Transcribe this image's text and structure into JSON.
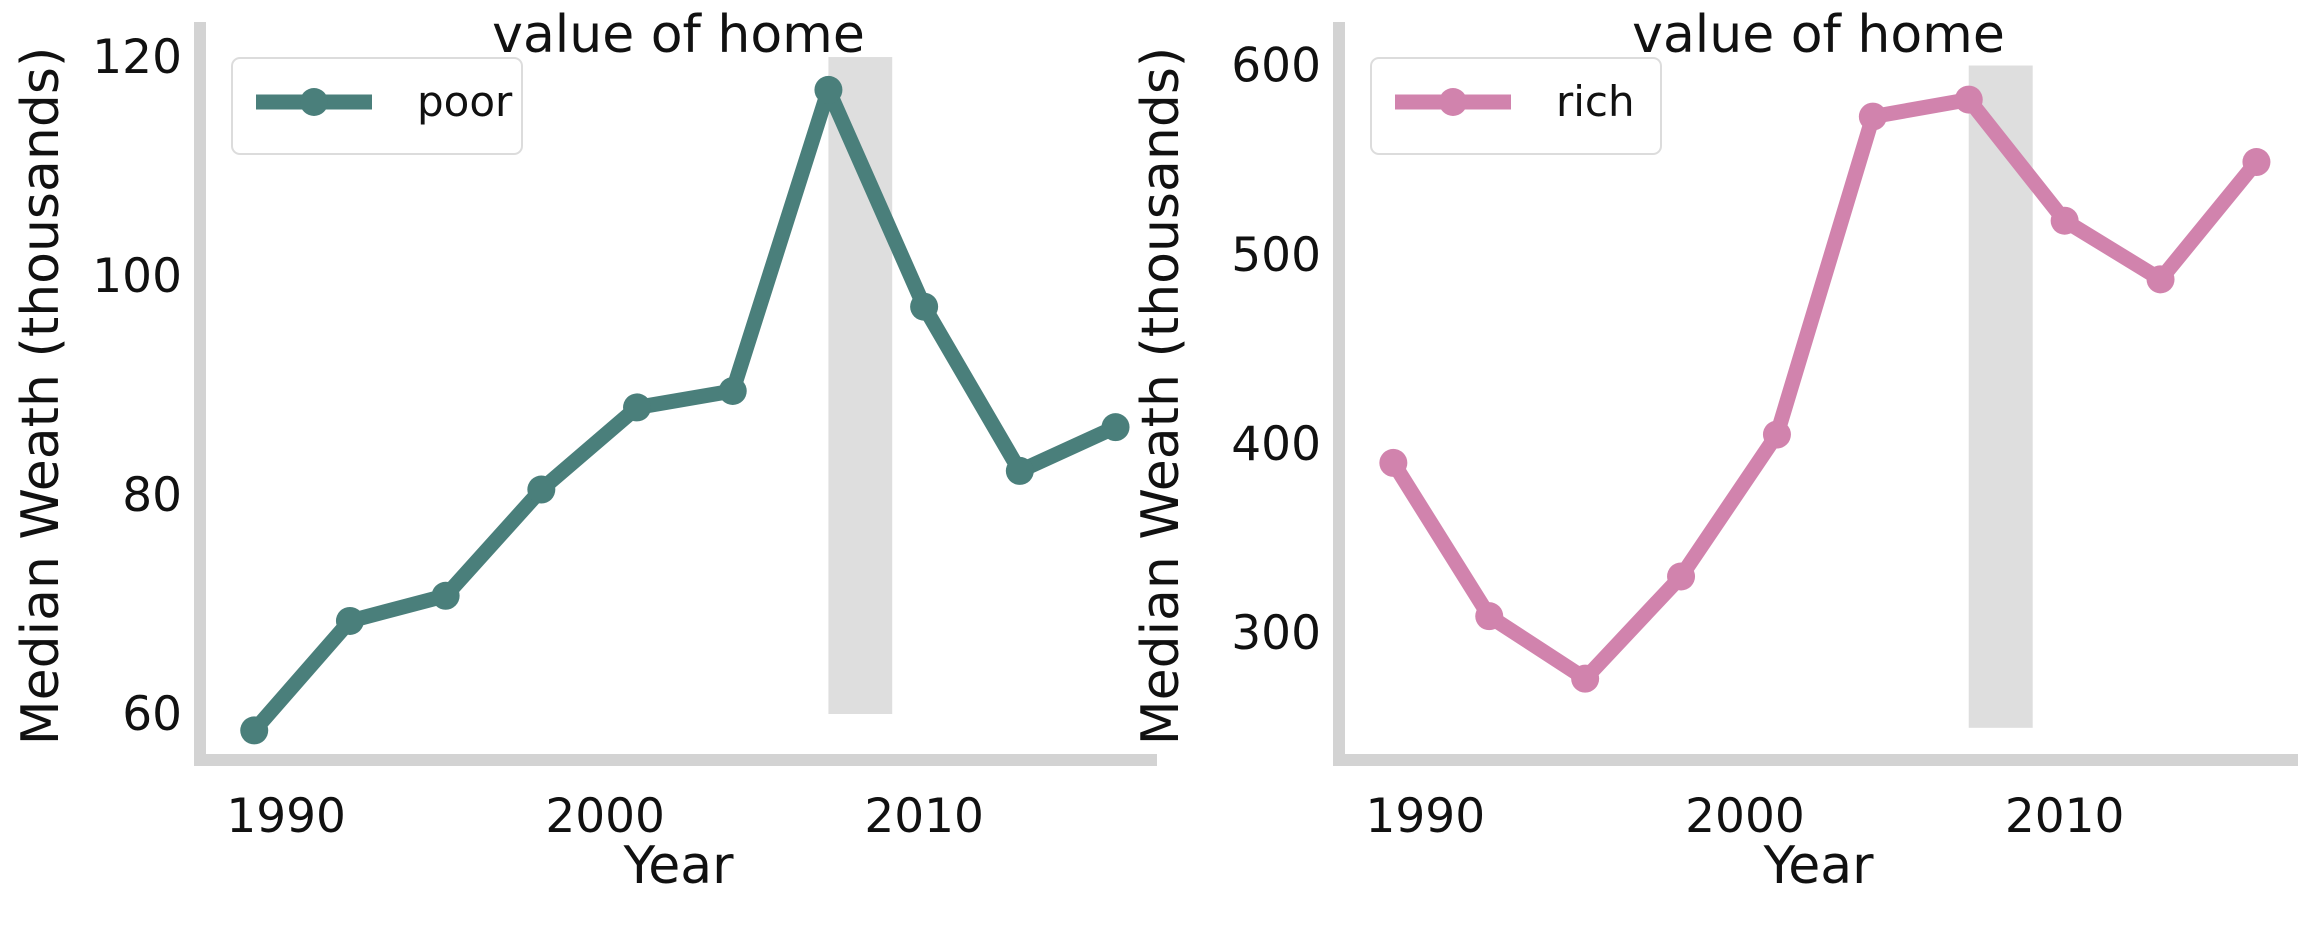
{
  "chart_data": [
    {
      "type": "line",
      "title": "value of home",
      "xlabel": "Year",
      "ylabel": "Median Weath (thousands)",
      "xlim": [
        1987.3,
        2017.3
      ],
      "ylim": [
        55.8,
        123.2
      ],
      "xticks": [
        1990,
        2000,
        2010
      ],
      "yticks": [
        60,
        80,
        100,
        120
      ],
      "grid": false,
      "legend_position": "top-left",
      "recession_band": {
        "x_start": 2007,
        "x_end": 2009,
        "y_start": 60,
        "y_end": 120
      },
      "series": [
        {
          "name": "poor",
          "color": "#4a7f7b",
          "x": [
            1989,
            1992,
            1995,
            1998,
            2001,
            2004,
            2007,
            2010,
            2013,
            2016
          ],
          "y": [
            58.5,
            68.5,
            70.8,
            80.5,
            88.0,
            89.5,
            117.0,
            97.2,
            82.2,
            86.2
          ]
        }
      ]
    },
    {
      "type": "line",
      "title": "value of home",
      "xlabel": "Year",
      "ylabel": "Median Weath (thousands)",
      "xlim": [
        1987.3,
        2017.3
      ],
      "ylim": [
        233,
        623
      ],
      "xticks": [
        1990,
        2000,
        2010
      ],
      "yticks": [
        300,
        400,
        500,
        600
      ],
      "grid": false,
      "legend_position": "top-left",
      "recession_band": {
        "x_start": 2007,
        "x_end": 2009,
        "y_start": 250,
        "y_end": 600
      },
      "series": [
        {
          "name": "rich",
          "color": "#d183ad",
          "x": [
            1989,
            1992,
            1995,
            1998,
            2001,
            2004,
            2007,
            2010,
            2013,
            2016
          ],
          "y": [
            390,
            309,
            276,
            330,
            405,
            573,
            582,
            518,
            487,
            549
          ]
        }
      ]
    }
  ]
}
